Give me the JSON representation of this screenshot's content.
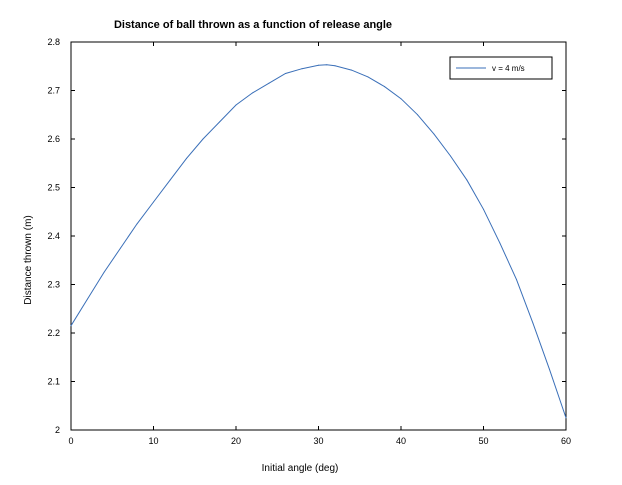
{
  "chart_data": {
    "type": "line",
    "title": "Distance of ball thrown as a function of release angle",
    "xlabel": "Initial angle (deg)",
    "ylabel": "Distance thrown (m)",
    "xlim": [
      0,
      60
    ],
    "ylim": [
      2,
      2.8
    ],
    "xticks": [
      0,
      10,
      20,
      30,
      40,
      50,
      60
    ],
    "yticks": [
      2,
      2.1,
      2.2,
      2.3,
      2.4,
      2.5,
      2.6,
      2.7,
      2.8
    ],
    "grid": false,
    "legend_position": "top-right",
    "colors": {
      "line": "#3a6fb8",
      "axis": "#000000"
    },
    "series": [
      {
        "name": "v = 4 m/s",
        "x": [
          0,
          2,
          4,
          6,
          8,
          10,
          12,
          14,
          16,
          18,
          20,
          22,
          24,
          26,
          28,
          30,
          31,
          32,
          34,
          36,
          38,
          40,
          42,
          44,
          46,
          48,
          50,
          52,
          54,
          56,
          58,
          60
        ],
        "y": [
          2.215,
          2.27,
          2.325,
          2.375,
          2.425,
          2.47,
          2.515,
          2.56,
          2.6,
          2.635,
          2.67,
          2.695,
          2.715,
          2.735,
          2.745,
          2.752,
          2.753,
          2.751,
          2.742,
          2.728,
          2.708,
          2.683,
          2.65,
          2.61,
          2.565,
          2.515,
          2.455,
          2.385,
          2.31,
          2.22,
          2.125,
          2.025
        ]
      }
    ]
  }
}
